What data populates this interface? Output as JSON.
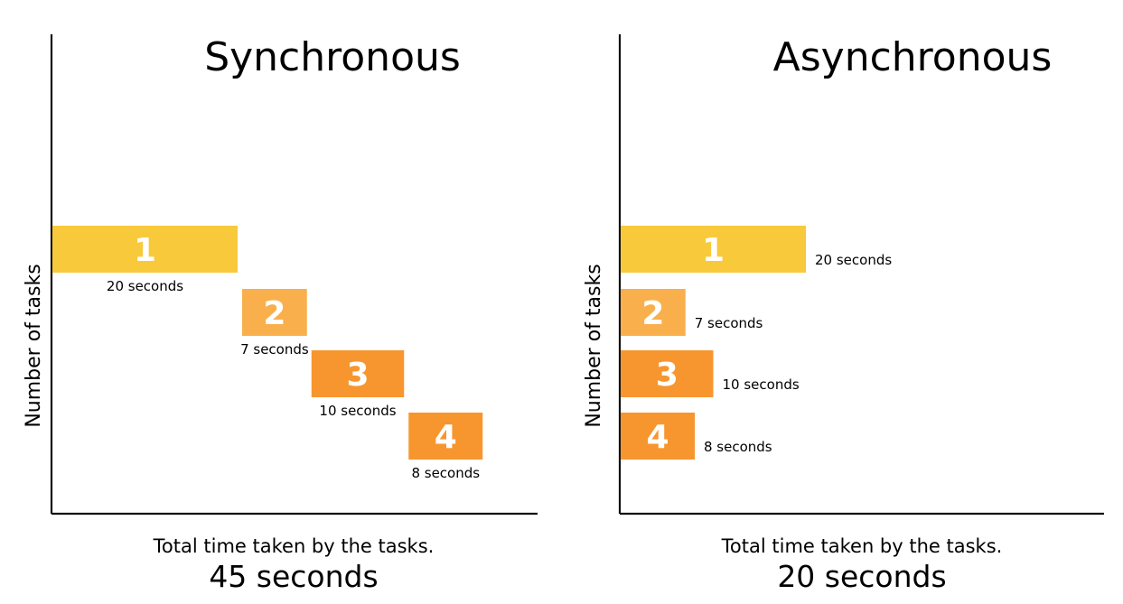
{
  "panels": [
    {
      "title": "Synchronous",
      "y_axis_label": "Number of tasks",
      "caption": "Total time taken by the tasks.",
      "total": "45 seconds"
    },
    {
      "title": "Asynchronous",
      "y_axis_label": "Number of tasks",
      "caption": "Total time taken by the tasks.",
      "total": "20 seconds"
    }
  ],
  "tasks": [
    {
      "number": "1",
      "duration_label": "20 seconds",
      "duration_seconds": 20,
      "color": "#f8c93a"
    },
    {
      "number": "2",
      "duration_label": "7 seconds",
      "duration_seconds": 7,
      "color": "#f9b04c"
    },
    {
      "number": "3",
      "duration_label": "10 seconds",
      "duration_seconds": 10,
      "color": "#f7962e"
    },
    {
      "number": "4",
      "duration_label": "8 seconds",
      "duration_seconds": 8,
      "color": "#f7962e"
    }
  ]
}
